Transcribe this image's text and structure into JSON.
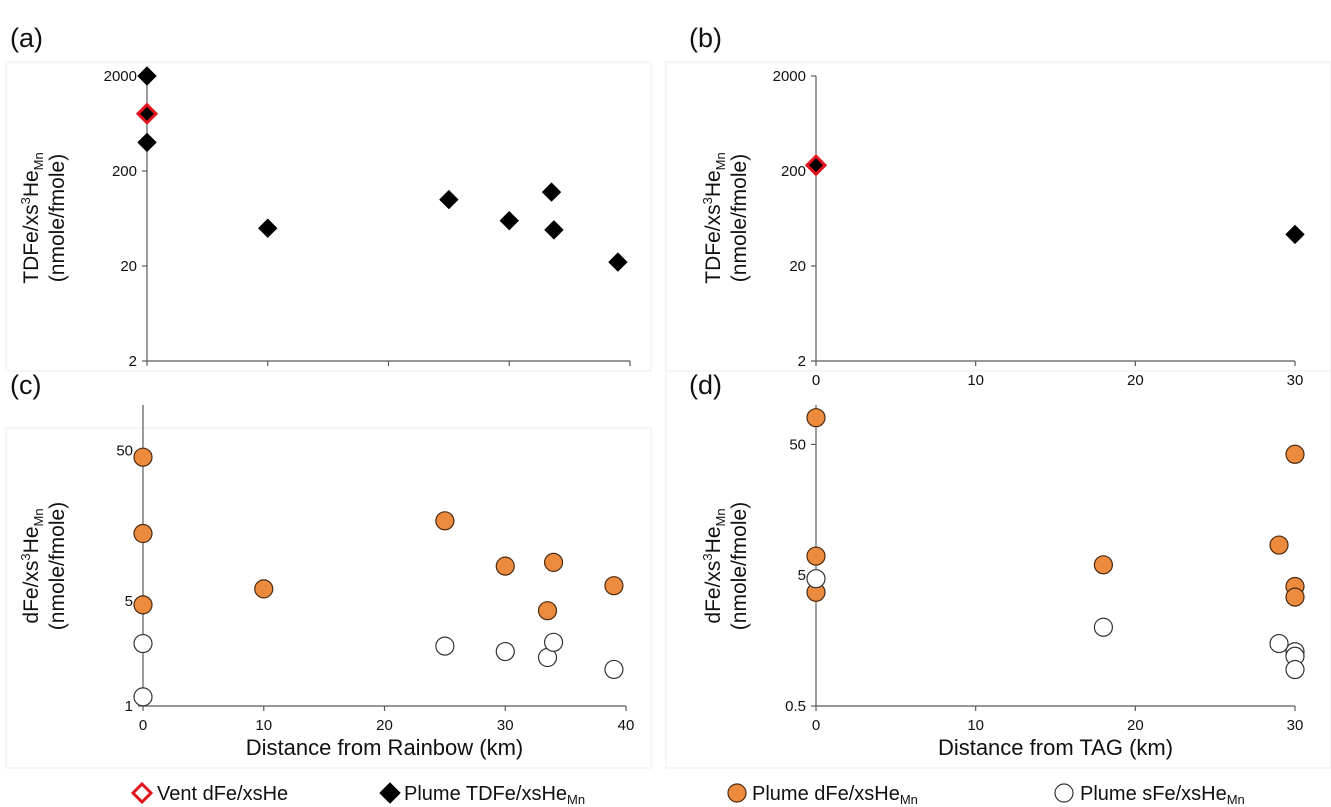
{
  "colors": {
    "vent_edge": "#e3141b",
    "plume_tdfe": "#000000",
    "plume_dfe": "#ec8a3e",
    "plume_dfe_edge": "#4a2a10",
    "plume_sfe": "#ffffff",
    "axis": "#595959"
  },
  "legend": {
    "vent": "Vent dFe/xsHe",
    "plume_tdfe": "Plume TDFe/xsHe",
    "plume_tdfe_sub": "Mn",
    "plume_dfe": "Plume dFe/xsHe",
    "plume_dfe_sub": "Mn",
    "plume_sfe": "Plume sFe/xsHe",
    "plume_sfe_sub": "Mn"
  },
  "chart_data": [
    {
      "panel": "(a)",
      "type": "scatter",
      "yscale": "log",
      "xlim": [
        0,
        40
      ],
      "ylim": [
        2,
        2000
      ],
      "yticks": [
        {
          "v": 2,
          "label": "2"
        },
        {
          "v": 20,
          "label": "20"
        },
        {
          "v": 200,
          "label": "200"
        },
        {
          "v": 2000,
          "label": "2000"
        }
      ],
      "xticks": [],
      "xlabel": "",
      "ylabel_line1": "TDFe/xs",
      "ylabel_sup": "3",
      "ylabel_he": "He",
      "ylabel_sub": "Mn",
      "ylabel_line2": "(nmole/fmole)",
      "series": [
        {
          "key": "plume_tdfe",
          "marker": "diamond",
          "x": [
            0,
            0,
            10,
            25,
            30,
            33.5,
            33.7,
            39
          ],
          "y": [
            2000,
            400,
            50,
            100,
            60,
            120,
            48,
            22
          ]
        },
        {
          "key": "vent",
          "marker": "vent-diamond",
          "x": [
            0
          ],
          "y": [
            800
          ]
        }
      ]
    },
    {
      "panel": "(b)",
      "type": "scatter",
      "yscale": "log",
      "xlim": [
        0,
        30
      ],
      "ylim": [
        2,
        2000
      ],
      "yticks": [
        {
          "v": 2,
          "label": "2"
        },
        {
          "v": 20,
          "label": "20"
        },
        {
          "v": 200,
          "label": "200"
        },
        {
          "v": 2000,
          "label": "2000"
        }
      ],
      "xticks": [
        {
          "v": 0,
          "label": "0"
        },
        {
          "v": 10,
          "label": "10"
        },
        {
          "v": 20,
          "label": "20"
        },
        {
          "v": 30,
          "label": "30"
        }
      ],
      "xlabel": "",
      "ylabel_line1": "TDFe/xs",
      "ylabel_sup": "3",
      "ylabel_he": "He",
      "ylabel_sub": "Mn",
      "ylabel_line2": "(nmole/fmole)",
      "series": [
        {
          "key": "plume_tdfe",
          "marker": "diamond",
          "x": [
            0,
            30
          ],
          "y": [
            230,
            43
          ]
        },
        {
          "key": "vent",
          "marker": "vent-diamond",
          "x": [
            0
          ],
          "y": [
            230
          ]
        }
      ]
    },
    {
      "panel": "(c)",
      "type": "scatter",
      "yscale": "log",
      "xlim": [
        0,
        40
      ],
      "ylim": [
        1,
        100
      ],
      "yticks": [
        {
          "v": 1,
          "label": "1"
        },
        {
          "v": 5,
          "label": "5"
        },
        {
          "v": 50,
          "label": "50"
        }
      ],
      "xticks": [
        {
          "v": 0,
          "label": "0"
        },
        {
          "v": 10,
          "label": "10"
        },
        {
          "v": 20,
          "label": "20"
        },
        {
          "v": 30,
          "label": "30"
        },
        {
          "v": 40,
          "label": "40"
        }
      ],
      "xlabel": "Distance from Rainbow (km)",
      "ylabel_line1": "dFe/xs",
      "ylabel_sup": "3",
      "ylabel_he": "He",
      "ylabel_sub": "Mn",
      "ylabel_line2": "(nmole/fmole)",
      "series": [
        {
          "key": "plume_dfe",
          "marker": "circle",
          "x": [
            0,
            0,
            0,
            10,
            25,
            30,
            33.5,
            34,
            39
          ],
          "y": [
            45,
            14,
            4.7,
            6,
            17,
            8.5,
            4.3,
            9,
            6.3
          ]
        },
        {
          "key": "plume_sfe",
          "marker": "circle",
          "x": [
            0,
            0,
            25,
            30,
            33.5,
            34,
            39
          ],
          "y": [
            2.6,
            1.15,
            2.5,
            2.3,
            2.1,
            2.65,
            1.75
          ]
        }
      ]
    },
    {
      "panel": "(d)",
      "type": "scatter",
      "yscale": "log",
      "xlim": [
        0,
        30
      ],
      "ylim": [
        0.5,
        100
      ],
      "yticks": [
        {
          "v": 0.5,
          "label": "0.5"
        },
        {
          "v": 5,
          "label": "5"
        },
        {
          "v": 50,
          "label": "50"
        }
      ],
      "xticks": [
        {
          "v": 0,
          "label": "0"
        },
        {
          "v": 10,
          "label": "10"
        },
        {
          "v": 20,
          "label": "20"
        },
        {
          "v": 30,
          "label": "30"
        }
      ],
      "xlabel": "Distance from TAG (km)",
      "ylabel_line1": "dFe/xs",
      "ylabel_sup": "3",
      "ylabel_he": "He",
      "ylabel_sub": "Mn",
      "ylabel_line2": "(nmole/fmole)",
      "series": [
        {
          "key": "plume_dfe",
          "marker": "circle",
          "x": [
            0,
            0,
            0,
            18,
            29,
            30,
            30,
            30
          ],
          "y": [
            80,
            7,
            3.7,
            6,
            8.5,
            42,
            4.1,
            3.4
          ]
        },
        {
          "key": "plume_sfe",
          "marker": "circle",
          "x": [
            0,
            18,
            29,
            30,
            30,
            30
          ],
          "y": [
            4.7,
            2,
            1.5,
            1.3,
            1.2,
            0.95
          ]
        }
      ]
    }
  ]
}
